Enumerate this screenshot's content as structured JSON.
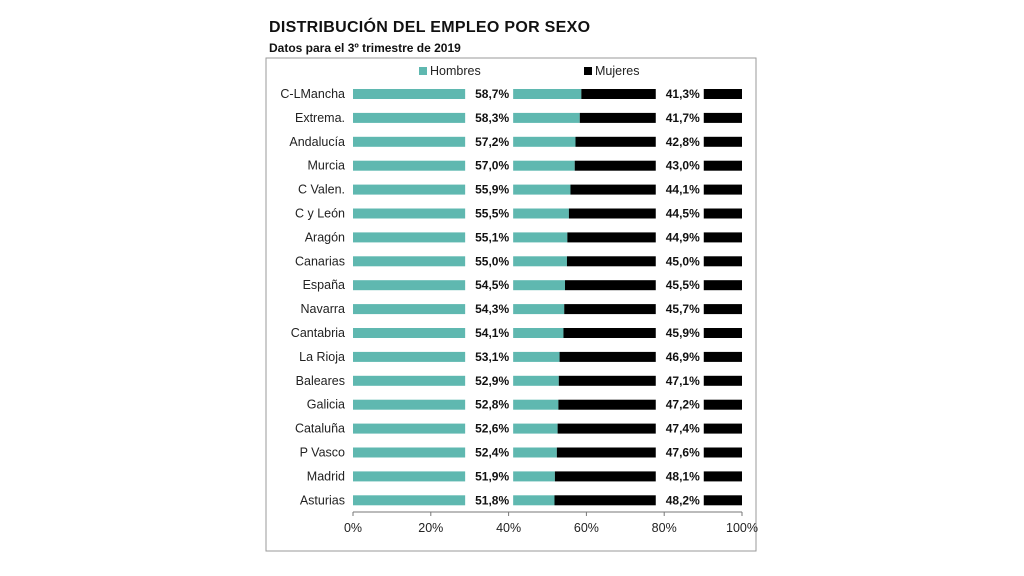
{
  "header": {
    "title": "DISTRIBUCIÓN DEL EMPLEO POR SEXO",
    "subtitle": "Datos para el 3º trimestre de 2019"
  },
  "chart_data": {
    "type": "bar",
    "orientation": "horizontal",
    "stacked": true,
    "title": "DISTRIBUCIÓN DEL EMPLEO POR SEXO",
    "subtitle": "Datos para el 3º trimestre de 2019",
    "categories": [
      "C-LMancha",
      "Extrema.",
      "Andalucía",
      "Murcia",
      "C Valen.",
      "C y León",
      "Aragón",
      "Canarias",
      "España",
      "Navarra",
      "Cantabria",
      "La Rioja",
      "Baleares",
      "Galicia",
      "Cataluña",
      "P Vasco",
      "Madrid",
      "Asturias"
    ],
    "series": [
      {
        "name": "Hombres",
        "color": "#5fb8b0",
        "values": [
          58.7,
          58.3,
          57.2,
          57.0,
          55.9,
          55.5,
          55.1,
          55.0,
          54.5,
          54.3,
          54.1,
          53.1,
          52.9,
          52.8,
          52.6,
          52.4,
          51.9,
          51.8
        ],
        "labels": [
          "58,7%",
          "58,3%",
          "57,2%",
          "57,0%",
          "55,9%",
          "55,5%",
          "55,1%",
          "55,0%",
          "54,5%",
          "54,3%",
          "54,1%",
          "53,1%",
          "52,9%",
          "52,8%",
          "52,6%",
          "52,4%",
          "51,9%",
          "51,8%"
        ]
      },
      {
        "name": "Mujeres",
        "color": "#000000",
        "values": [
          41.3,
          41.7,
          42.8,
          43.0,
          44.1,
          44.5,
          44.9,
          45.0,
          45.5,
          45.7,
          45.9,
          46.9,
          47.1,
          47.2,
          47.4,
          47.6,
          48.1,
          48.2
        ],
        "labels": [
          "41,3%",
          "41,7%",
          "42,8%",
          "43,0%",
          "44,1%",
          "44,5%",
          "44,9%",
          "45,0%",
          "45,5%",
          "45,7%",
          "45,9%",
          "46,9%",
          "47,1%",
          "47,2%",
          "47,4%",
          "47,6%",
          "48,1%",
          "48,2%"
        ]
      }
    ],
    "xlim": [
      0,
      100
    ],
    "xticks": [
      "0%",
      "20%",
      "40%",
      "60%",
      "80%",
      "100%"
    ],
    "grid": false,
    "legend": "top"
  }
}
